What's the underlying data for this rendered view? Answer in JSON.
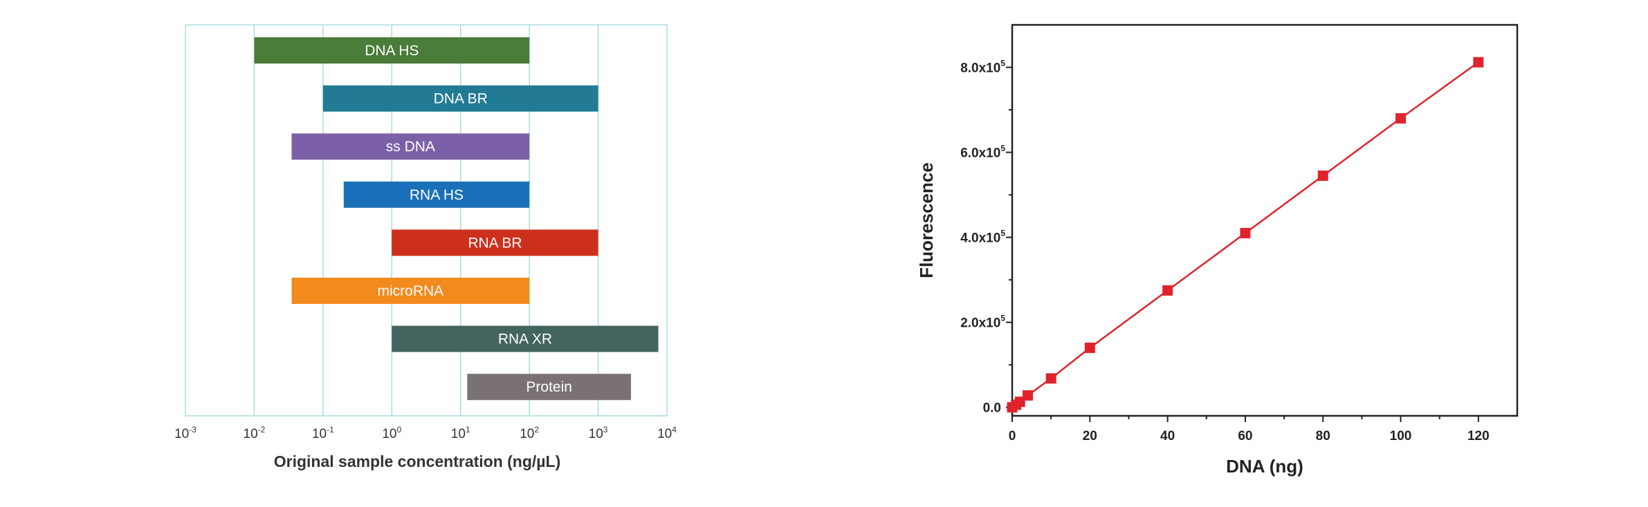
{
  "chart_data": [
    {
      "type": "bar",
      "orientation": "horizontal-range",
      "xscale": "log",
      "xlim_exp": [
        -3,
        4
      ],
      "xlabel": "Original sample concentration (ng/µL)",
      "xticks": [
        {
          "base": "10",
          "exp": "-3"
        },
        {
          "base": "10",
          "exp": "-2"
        },
        {
          "base": "10",
          "exp": "-1"
        },
        {
          "base": "10",
          "exp": "0"
        },
        {
          "base": "10",
          "exp": "1"
        },
        {
          "base": "10",
          "exp": "2"
        },
        {
          "base": "10",
          "exp": "3"
        },
        {
          "base": "10",
          "exp": "4"
        }
      ],
      "grid": true,
      "grid_color": "#a8dde0",
      "series": [
        {
          "name": "DNA HS",
          "low": 0.01,
          "high": 100,
          "color": "#4a7c3a"
        },
        {
          "name": "DNA BR",
          "low": 0.1,
          "high": 1000,
          "color": "#237a94"
        },
        {
          "name": "ss DNA",
          "low": 0.035,
          "high": 100,
          "color": "#7b60a8"
        },
        {
          "name": "RNA HS",
          "low": 0.2,
          "high": 100,
          "color": "#1a70b8"
        },
        {
          "name": "RNA BR",
          "low": 1,
          "high": 1000,
          "color": "#cc301c"
        },
        {
          "name": "microRNA",
          "low": 0.035,
          "high": 100,
          "color": "#f28a1e"
        },
        {
          "name": "RNA XR",
          "low": 1,
          "high": 7500,
          "color": "#43645f"
        },
        {
          "name": "Protein",
          "low": 12.5,
          "high": 3000,
          "color": "#7a7272"
        }
      ]
    },
    {
      "type": "line",
      "markers": "square",
      "xlabel": "DNA (ng)",
      "ylabel": "Fluorescence",
      "xlim": [
        0,
        130
      ],
      "ylim": [
        -20000,
        900000
      ],
      "xticks": [
        "0",
        "20",
        "40",
        "60",
        "80",
        "100",
        "120"
      ],
      "yticks": [
        {
          "value": 0,
          "text": "0.0",
          "exp": ""
        },
        {
          "value": 200000,
          "text": "2.0x10",
          "exp": "5"
        },
        {
          "value": 400000,
          "text": "4.0x10",
          "exp": "5"
        },
        {
          "value": 600000,
          "text": "6.0x10",
          "exp": "5"
        },
        {
          "value": 800000,
          "text": "8.0x10",
          "exp": "5"
        }
      ],
      "color": "#e0232b",
      "series": [
        {
          "name": "Fluorescence",
          "x": [
            0,
            0.5,
            1,
            2,
            4,
            10,
            20,
            40,
            60,
            80,
            100,
            120
          ],
          "y": [
            0,
            3000,
            6000,
            13000,
            28000,
            68000,
            140000,
            275000,
            410000,
            545000,
            680000,
            812000
          ]
        }
      ]
    }
  ]
}
